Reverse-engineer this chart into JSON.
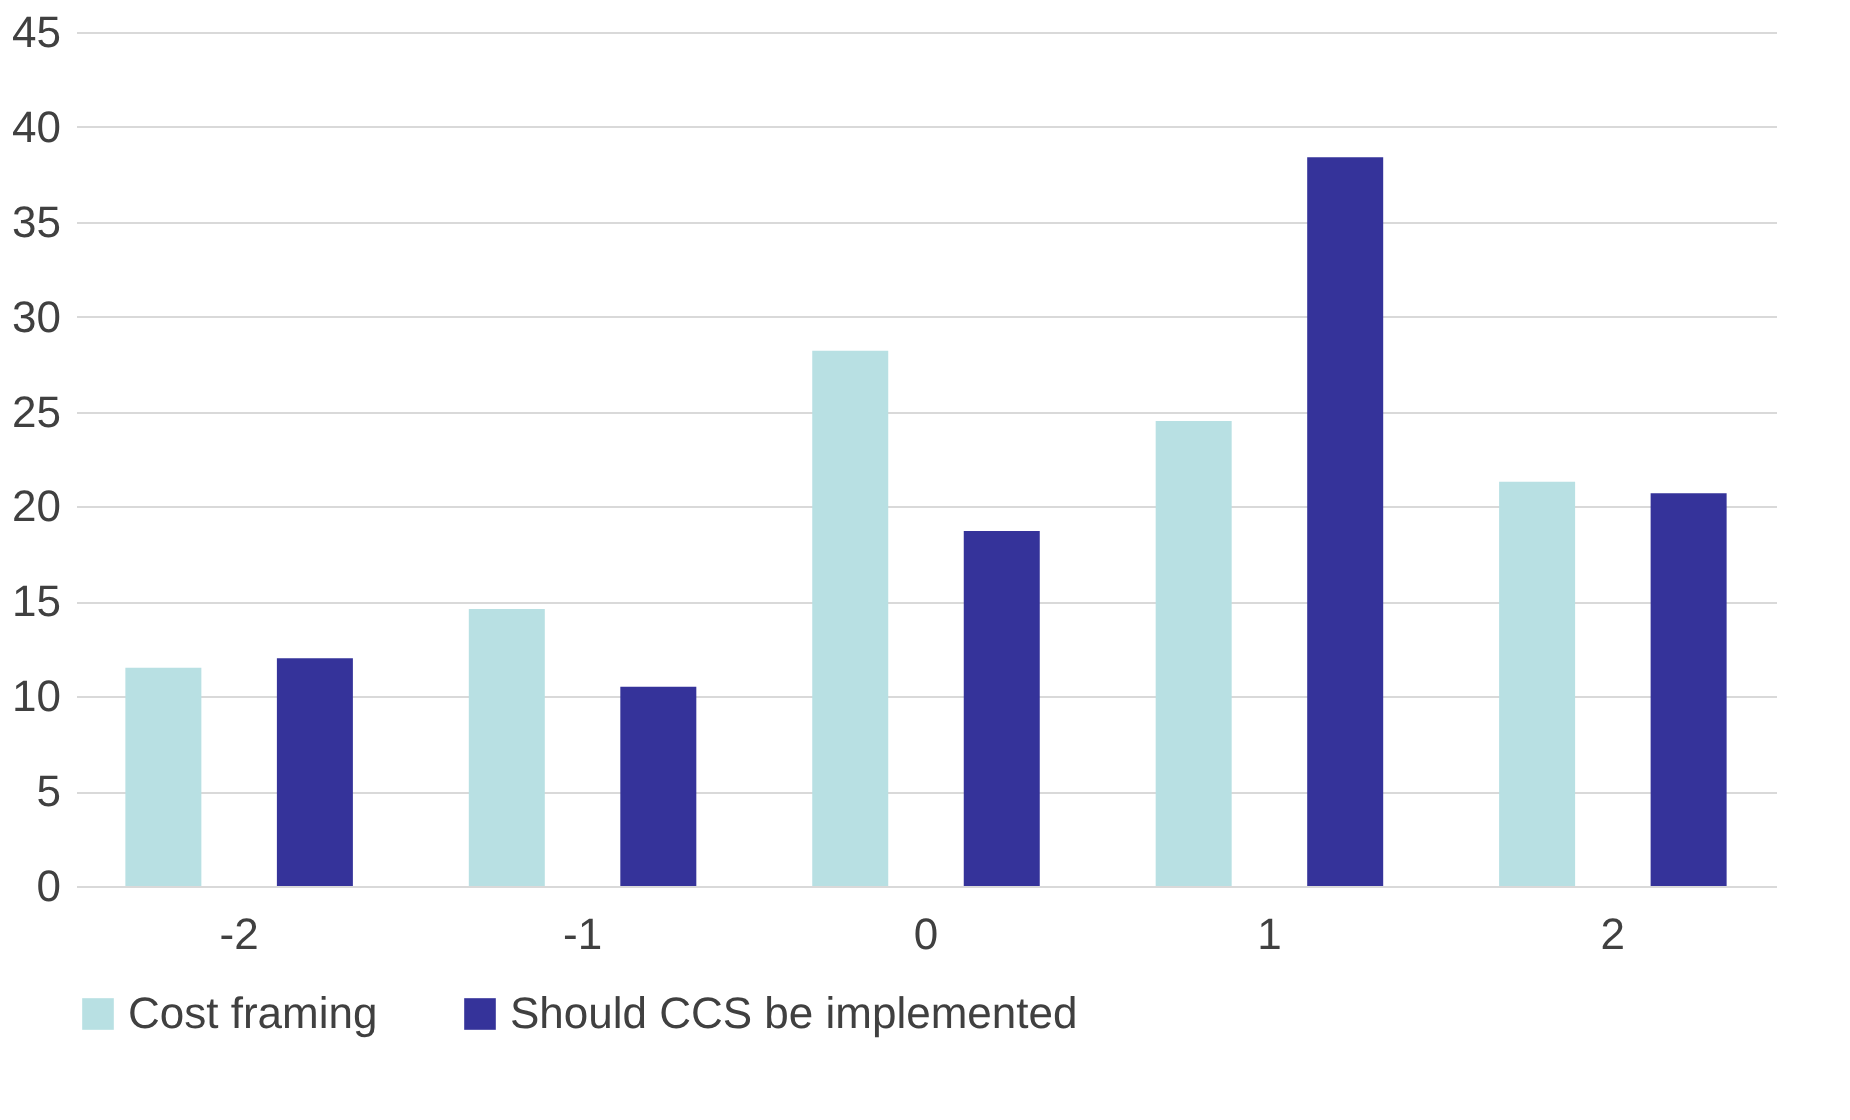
{
  "chart_data": {
    "type": "bar",
    "categories": [
      "-2",
      "-1",
      "0",
      "1",
      "2"
    ],
    "series": [
      {
        "name": "Cost framing",
        "color": "#b8e0e3",
        "values": [
          11.5,
          14.6,
          28.2,
          24.5,
          21.3
        ]
      },
      {
        "name": "Should CCS be implemented",
        "color": "#35339a",
        "values": [
          12,
          10.5,
          18.7,
          38.4,
          20.7
        ]
      }
    ],
    "ylim": [
      0,
      45
    ],
    "yticks": [
      0,
      5,
      10,
      15,
      20,
      25,
      30,
      35,
      40,
      45
    ],
    "grid": "y",
    "legend": "bottom"
  }
}
